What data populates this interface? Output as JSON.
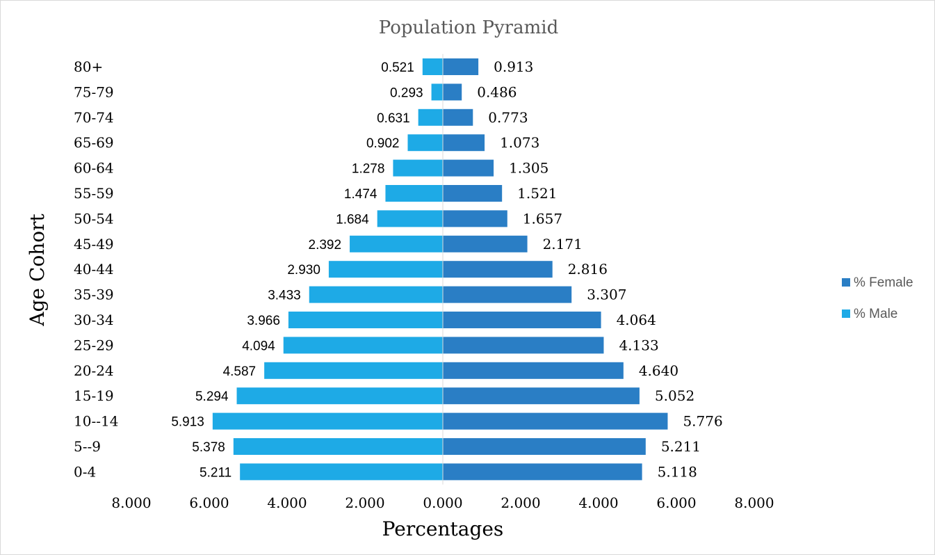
{
  "chart_data": {
    "type": "bar",
    "orientation": "horizontal",
    "title": "Population Pyramid",
    "xlabel": "Percentages",
    "ylabel": "Age Cohort",
    "categories": [
      "0-4",
      "5--9",
      "10--14",
      "15-19",
      "20-24",
      "25-29",
      "30-34",
      "35-39",
      "40-44",
      "45-49",
      "50-54",
      "55-59",
      "60-64",
      "65-69",
      "70-74",
      "75-79",
      "80+"
    ],
    "series": [
      {
        "name": "% Female",
        "color": "#2a7ec5",
        "side": "right",
        "values": [
          5.118,
          5.211,
          5.776,
          5.052,
          4.64,
          4.133,
          4.064,
          3.307,
          2.816,
          2.171,
          1.657,
          1.521,
          1.305,
          1.073,
          0.773,
          0.486,
          0.913
        ],
        "labels": [
          "5.118",
          "5.211",
          "5.776",
          "5.052",
          "4.640",
          "4.133",
          "4.064",
          "3.307",
          "2.816",
          "2.171",
          "1.657",
          "1.521",
          "1.305",
          "1.073",
          "0.773",
          "0.486",
          "0.913"
        ]
      },
      {
        "name": "% Male",
        "color": "#1eaae6",
        "side": "left",
        "values": [
          5.211,
          5.378,
          5.913,
          5.294,
          4.587,
          4.094,
          3.966,
          3.433,
          2.93,
          2.392,
          1.684,
          1.474,
          1.278,
          0.902,
          0.631,
          0.293,
          0.521
        ],
        "labels": [
          "5.211",
          "5.378",
          "5.913",
          "5.294",
          "4.587",
          "4.094",
          "3.966",
          "3.433",
          "2.930",
          "2.392",
          "1.684",
          "1.474",
          "1.278",
          "0.902",
          "0.631",
          "0.293",
          "0.521"
        ]
      }
    ],
    "xlim": [
      -8,
      8
    ],
    "xticks": [
      -8,
      -6,
      -4,
      -2,
      0,
      2,
      4,
      6,
      8
    ],
    "xtick_labels": [
      "8.000",
      "6.000",
      "4.000",
      "2.000",
      "0.000",
      "2.000",
      "4.000",
      "6.000",
      "8.000"
    ],
    "grid": false,
    "legend_position": "right"
  }
}
